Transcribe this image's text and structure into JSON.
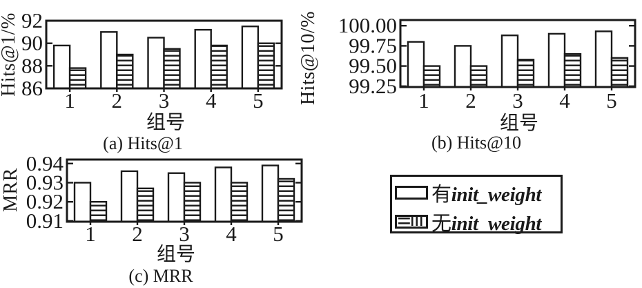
{
  "figure": {
    "background": "#ffffff",
    "ink": "#1a1a1a"
  },
  "legend": {
    "items": [
      {
        "prefix": "有",
        "term": "init_weight",
        "swatch": "plain"
      },
      {
        "prefix": "无",
        "term": "init_weight",
        "swatch": "hatched"
      }
    ]
  },
  "chart_data": [
    {
      "type": "bar",
      "caption": "(a) Hits@1",
      "ylabel": "Hits@1/%",
      "xlabel": "组号",
      "categories": [
        "1",
        "2",
        "3",
        "4",
        "5"
      ],
      "series": [
        {
          "name": "有init_weight",
          "style": "plain",
          "values": [
            89.8,
            91.0,
            90.5,
            91.2,
            91.5
          ]
        },
        {
          "name": "无init_weight",
          "style": "hatched",
          "values": [
            87.8,
            89.0,
            89.5,
            89.8,
            90.0
          ]
        }
      ],
      "ytick_labels": [
        "86",
        "88",
        "90",
        "92"
      ],
      "ytick_values": [
        86,
        88,
        90,
        92
      ],
      "ylim": [
        86,
        92
      ],
      "grid": false,
      "legend_position": "outside-bottom-right"
    },
    {
      "type": "bar",
      "caption": "(b) Hits@10",
      "ylabel": "Hits@10/%",
      "xlabel": "组号",
      "categories": [
        "1",
        "2",
        "3",
        "4",
        "5"
      ],
      "series": [
        {
          "name": "有init_weight",
          "style": "plain",
          "values": [
            99.8,
            99.75,
            99.88,
            99.9,
            99.93
          ]
        },
        {
          "name": "无init_weight",
          "style": "hatched",
          "values": [
            99.5,
            99.5,
            99.58,
            99.65,
            99.6
          ]
        }
      ],
      "ytick_labels": [
        "99.25",
        "99.50",
        "99.75",
        "100.00"
      ],
      "ytick_values": [
        99.25,
        99.5,
        99.75,
        100.0
      ],
      "ylim": [
        99.24,
        100.07
      ],
      "grid": false,
      "legend_position": "outside-bottom-right"
    },
    {
      "type": "bar",
      "caption": "(c) MRR",
      "ylabel": "MRR",
      "xlabel": "组号",
      "categories": [
        "1",
        "2",
        "3",
        "4",
        "5"
      ],
      "series": [
        {
          "name": "有init_weight",
          "style": "plain",
          "values": [
            0.93,
            0.936,
            0.935,
            0.938,
            0.939
          ]
        },
        {
          "name": "无init_weight",
          "style": "hatched",
          "values": [
            0.92,
            0.927,
            0.93,
            0.93,
            0.932
          ]
        }
      ],
      "ytick_labels": [
        "0.91",
        "0.92",
        "0.93",
        "0.94"
      ],
      "ytick_values": [
        0.91,
        0.92,
        0.93,
        0.94
      ],
      "ylim": [
        0.9096,
        0.9421
      ],
      "grid": false,
      "legend_position": "outside-bottom-right"
    }
  ]
}
